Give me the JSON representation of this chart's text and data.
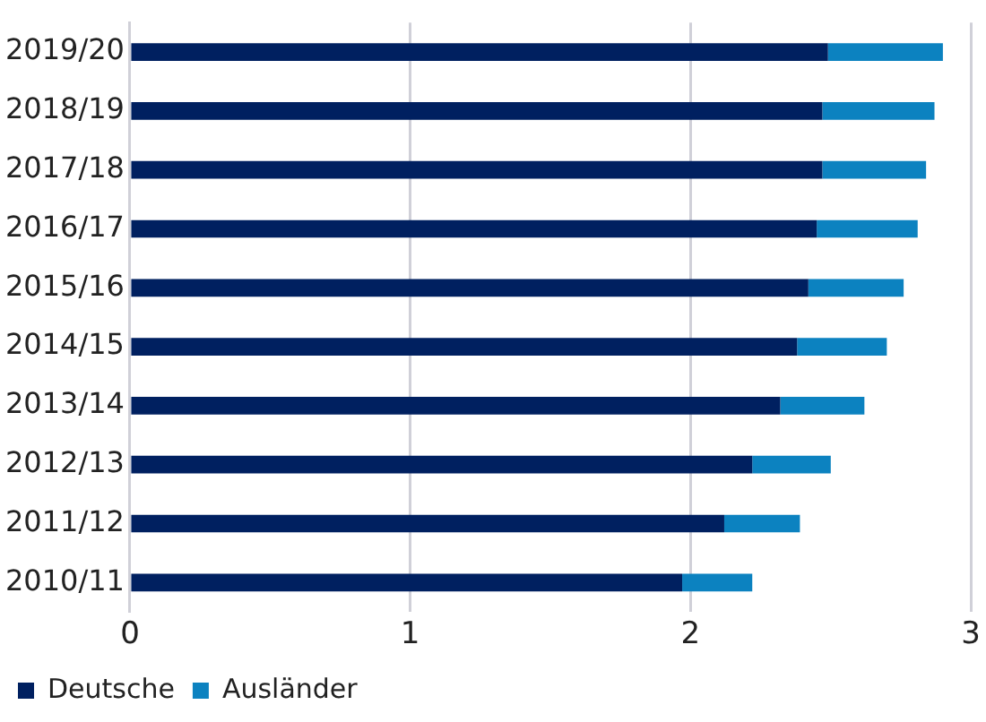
{
  "chart_data": {
    "type": "bar",
    "orientation": "horizontal",
    "stacked": true,
    "categories": [
      "2019/20",
      "2018/19",
      "2017/18",
      "2016/17",
      "2015/16",
      "2014/15",
      "2013/14",
      "2012/13",
      "2011/12",
      "2010/11"
    ],
    "series": [
      {
        "name": "Deutsche",
        "color": "#002060",
        "values": [
          2.49,
          2.47,
          2.47,
          2.45,
          2.42,
          2.38,
          2.32,
          2.22,
          2.12,
          1.97
        ]
      },
      {
        "name": "Ausländer",
        "color": "#0c82c0",
        "values": [
          0.41,
          0.4,
          0.37,
          0.36,
          0.34,
          0.32,
          0.3,
          0.28,
          0.27,
          0.25
        ]
      }
    ],
    "xlim": [
      0,
      3
    ],
    "xticks": [
      0,
      1,
      2,
      3
    ],
    "grid": "x",
    "legend": "bottom left"
  }
}
